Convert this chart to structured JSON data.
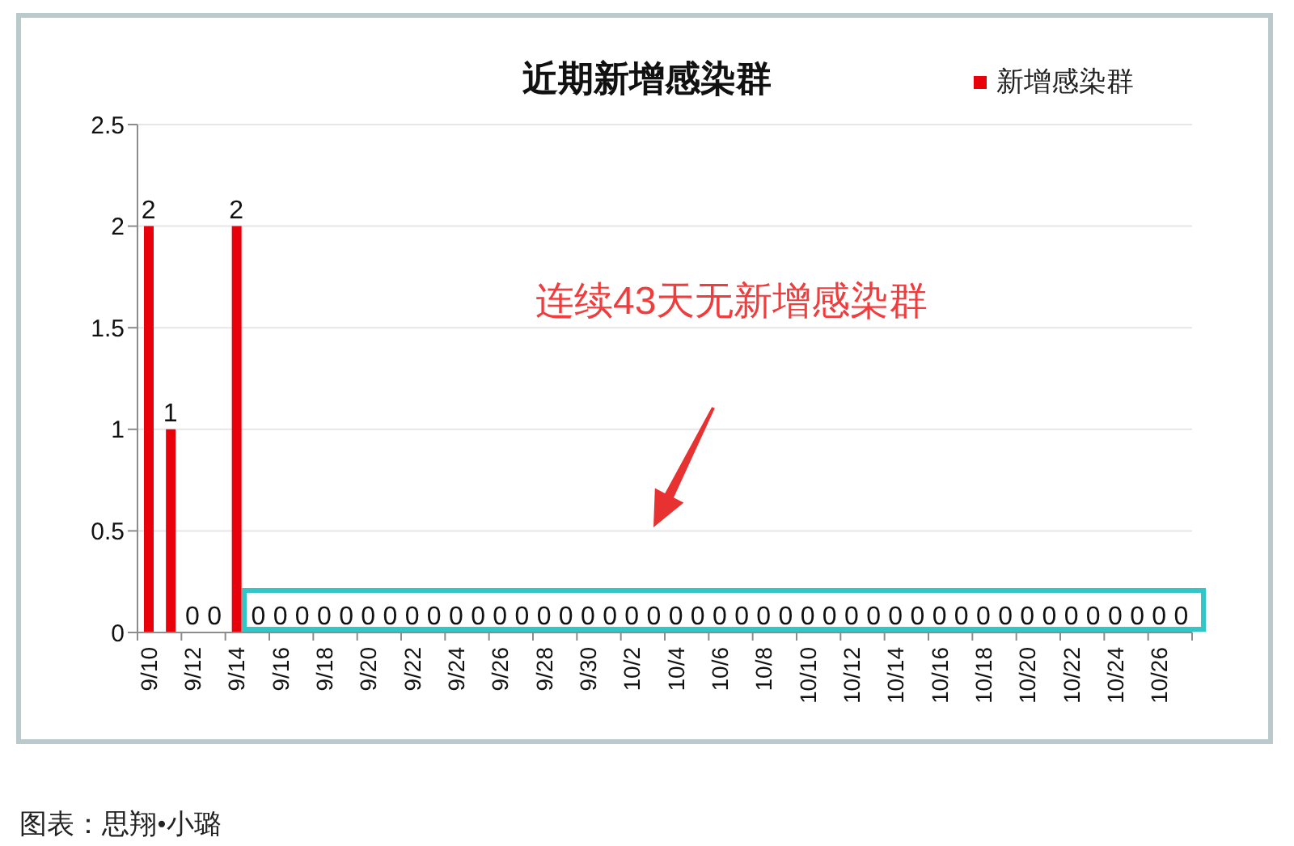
{
  "chart_data": {
    "type": "bar",
    "title": "近期新增感染群",
    "categories": [
      "9/10",
      null,
      "9/12",
      null,
      "9/14",
      null,
      "9/16",
      null,
      "9/18",
      null,
      "9/20",
      null,
      "9/22",
      null,
      "9/24",
      null,
      "9/26",
      null,
      "9/28",
      null,
      "9/30",
      null,
      "10/2",
      null,
      "10/4",
      null,
      "10/6",
      null,
      "10/8",
      null,
      "10/10",
      null,
      "10/12",
      null,
      "10/14",
      null,
      "10/16",
      null,
      "10/18",
      null,
      "10/20",
      null,
      "10/22",
      null,
      "10/24",
      null,
      "10/26",
      null
    ],
    "series": [
      {
        "name": "新增感染群",
        "color": "#e8000b",
        "values": [
          2,
          1,
          0,
          0,
          2,
          0,
          0,
          0,
          0,
          0,
          0,
          0,
          0,
          0,
          0,
          0,
          0,
          0,
          0,
          0,
          0,
          0,
          0,
          0,
          0,
          0,
          0,
          0,
          0,
          0,
          0,
          0,
          0,
          0,
          0,
          0,
          0,
          0,
          0,
          0,
          0,
          0,
          0,
          0,
          0,
          0,
          0,
          0
        ]
      }
    ],
    "ylim": [
      0,
      2.5
    ],
    "yticks": [
      0,
      0.5,
      1,
      1.5,
      2,
      2.5
    ],
    "grid": "y",
    "legend": "top right",
    "data_labels": true,
    "annotations": [
      "连续43天无新增感染群",
      "图表：思翔•小璐"
    ]
  }
}
